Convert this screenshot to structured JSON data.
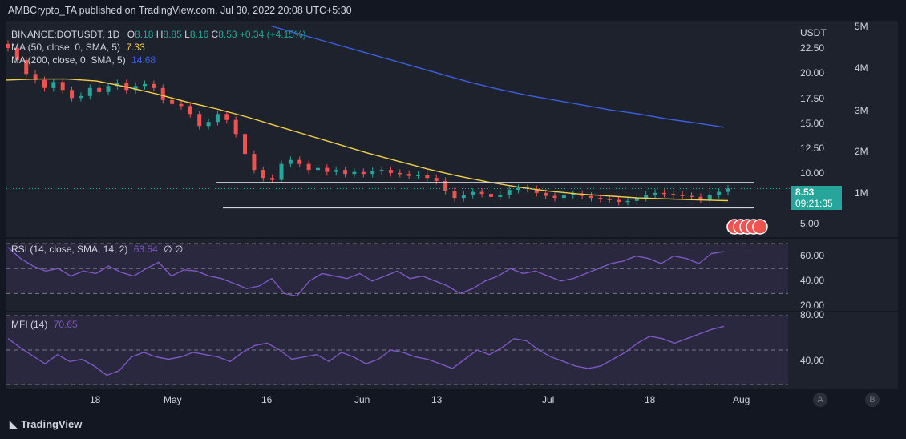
{
  "header": "AMBCrypto_TA published on TradingView.com, Jul 30, 2022 20:08 UTC+5:30",
  "footer": {
    "brand": "TradingView"
  },
  "price_pane": {
    "symbol_line": [
      "BINANCE:DOTUSDT, 1D",
      "O",
      "8.18",
      "H",
      "8.85",
      "L",
      "8.16",
      "C",
      "8.53",
      "+0.34 (+4.15%)"
    ],
    "ma50": {
      "label": "MA (50, close, 0, SMA, 5)",
      "value": "7.33",
      "color": "#f0d04b"
    },
    "ma200": {
      "label": "MA (200, close, 0, SMA, 5)",
      "value": "14.68",
      "color": "#3b5fe0"
    },
    "currency": "USDT",
    "last_price": "8.53",
    "countdown": "09:21:35",
    "right_axis": [
      "22.50",
      "20.00",
      "17.50",
      "15.00",
      "12.50",
      "10.00",
      "5.00"
    ],
    "volume_axis": [
      "5M",
      "4M",
      "3M",
      "2M",
      "1M"
    ]
  },
  "rsi_pane": {
    "label": "RSI (14, close, SMA, 14, 2)",
    "value": "63.54",
    "extra": "∅ ∅",
    "axis": [
      "60.00",
      "40.00",
      "20.00"
    ]
  },
  "mfi_pane": {
    "label": "MFI (14)",
    "value": "70.65",
    "axis": [
      "80.00",
      "40.00"
    ]
  },
  "time_axis": [
    "18",
    "May",
    "16",
    "Jun",
    "13",
    "Jul",
    "18",
    "Aug"
  ],
  "scale_buttons": [
    "A",
    "B"
  ],
  "chart_data": [
    {
      "type": "line",
      "series": [
        {
          "name": "BINANCE:DOTUSDT",
          "values": [
            22.6,
            21.4,
            20.0,
            19.4,
            18.6,
            19.2,
            18.4,
            17.6,
            17.8,
            18.6,
            18.2,
            18.8,
            19.1,
            18.4,
            18.8,
            19.0,
            18.6,
            17.4,
            17.0,
            16.8,
            16.0,
            14.8,
            15.2,
            16.0,
            15.4,
            14.0,
            12.0,
            10.4,
            9.6,
            9.4,
            11.0,
            11.4,
            11.0,
            10.4,
            10.6,
            10.2,
            10.4,
            10.0,
            10.2,
            10.0,
            10.3,
            10.4,
            10.1,
            10.0,
            9.8,
            9.9,
            9.6,
            9.3,
            8.3,
            7.6,
            7.9,
            8.2,
            8.0,
            7.7,
            7.9,
            8.4,
            8.6,
            8.5,
            8.1,
            7.8,
            7.6,
            7.9,
            8.0,
            7.8,
            7.6,
            7.5,
            7.4,
            7.2,
            7.3,
            7.6,
            7.9,
            8.1,
            8.0,
            7.9,
            7.8,
            7.7,
            7.4,
            7.9,
            8.2,
            8.53
          ]
        },
        {
          "name": "MA (50, close, 0, SMA, 5)",
          "values": [
            19.4,
            19.5,
            19.5,
            19.3,
            18.7,
            18.0,
            17.2,
            16.5,
            15.7,
            14.8,
            13.9,
            13.0,
            12.1,
            11.3,
            10.5,
            9.8,
            9.2,
            8.7,
            8.3,
            8.0,
            7.8,
            7.6,
            7.5,
            7.4,
            7.33
          ]
        },
        {
          "name": "MA (200, close, 0, SMA, 5)",
          "values": [
            24.8,
            24.0,
            23.2,
            22.4,
            21.6,
            20.8,
            20.0,
            19.2,
            18.5,
            17.9,
            17.4,
            16.9,
            16.4,
            16.0,
            15.5,
            15.1,
            14.68
          ]
        },
        {
          "name": "RSI (14, close, SMA, 14, 2)",
          "values": [
            67,
            58,
            52,
            48,
            50,
            44,
            48,
            46,
            52,
            47,
            44,
            50,
            55,
            44,
            49,
            48,
            44,
            42,
            38,
            34,
            36,
            42,
            30,
            28,
            40,
            46,
            44,
            42,
            46,
            40,
            44,
            48,
            42,
            44,
            40,
            36,
            30,
            34,
            40,
            44,
            50,
            46,
            48,
            44,
            40,
            42,
            46,
            50,
            54,
            56,
            60,
            58,
            54,
            60,
            58,
            54,
            62,
            63.54
          ]
        },
        {
          "name": "MFI (14)",
          "values": [
            60,
            52,
            45,
            38,
            46,
            40,
            42,
            36,
            28,
            32,
            44,
            48,
            44,
            42,
            44,
            48,
            46,
            44,
            40,
            48,
            54,
            56,
            50,
            42,
            44,
            46,
            40,
            48,
            44,
            38,
            42,
            50,
            48,
            44,
            42,
            38,
            34,
            42,
            50,
            46,
            52,
            60,
            58,
            50,
            44,
            40,
            36,
            34,
            36,
            42,
            48,
            56,
            62,
            60,
            56,
            60,
            64,
            68,
            70.65
          ]
        }
      ],
      "ylim_price": [
        4,
        25
      ],
      "ylim_rsi": [
        20,
        70
      ],
      "ylim_mfi": [
        20,
        80
      ],
      "xlabel": "",
      "ylabel": "",
      "grid": false
    }
  ],
  "colors": {
    "up": "#26a69a",
    "down": "#ef5350",
    "bg": "#131722",
    "panel": "#1e222d",
    "rsi_line": "#7e57c2",
    "mfi_line": "#7e57c2"
  }
}
